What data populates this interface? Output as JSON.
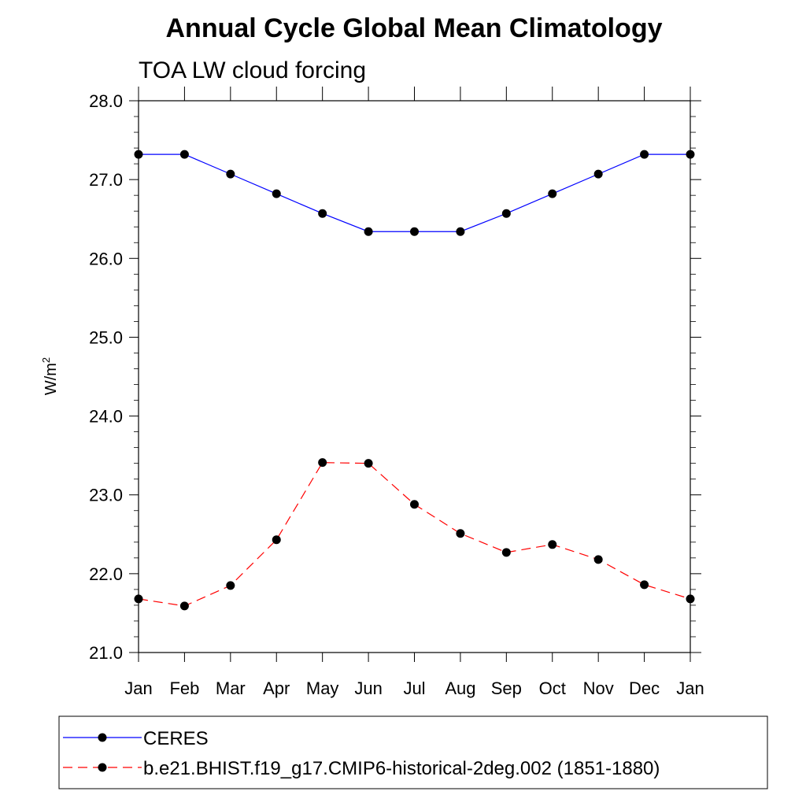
{
  "chart_data": {
    "type": "line",
    "title": "Annual Cycle Global Mean Climatology",
    "subtitle": "TOA LW cloud forcing",
    "ylabel_base": "W/m",
    "ylabel_sup": "2",
    "categories": [
      "Jan",
      "Feb",
      "Mar",
      "Apr",
      "May",
      "Jun",
      "Jul",
      "Aug",
      "Sep",
      "Oct",
      "Nov",
      "Dec",
      "Jan"
    ],
    "ylim": [
      21.0,
      28.0
    ],
    "yticks": [
      "21.0",
      "22.0",
      "23.0",
      "24.0",
      "25.0",
      "26.0",
      "27.0",
      "28.0"
    ],
    "grid": false,
    "legend_position": "bottom",
    "series": [
      {
        "name": "CERES",
        "color": "#0000ff",
        "line_style": "solid",
        "values": [
          27.32,
          27.32,
          27.07,
          26.82,
          26.57,
          26.34,
          26.34,
          26.34,
          26.57,
          26.82,
          27.07,
          27.32,
          27.32
        ]
      },
      {
        "name": "b.e21.BHIST.f19_g17.CMIP6-historical-2deg.002 (1851-1880)",
        "color": "#ff0000",
        "line_style": "dashed",
        "values": [
          21.68,
          21.59,
          21.85,
          22.43,
          23.41,
          23.4,
          22.88,
          22.51,
          22.27,
          22.37,
          22.18,
          21.86,
          21.68
        ]
      }
    ]
  }
}
